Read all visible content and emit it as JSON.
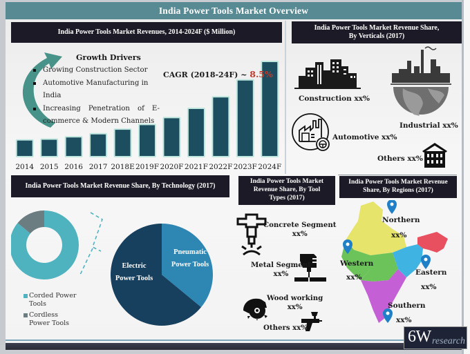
{
  "header": {
    "title": "India Power Tools Market Overview"
  },
  "revenue": {
    "title": "India  Power Tools Market Revenues, 2014-2024F ($ Million)",
    "growth_drivers": {
      "heading": "Growth Drivers",
      "items": [
        "Growing Construction Sector",
        "Automotive Manufacturing in India",
        "Increasing Penetration of E-",
        "commerce & Modern Channels"
      ]
    },
    "cagr_label": "CAGR (2018-24F) ~ ",
    "cagr_value": "8.5%",
    "colors": {
      "bar": "#1d4e5f",
      "glow": "#bfe6de",
      "arrow": "#3d8d83"
    }
  },
  "verticals": {
    "title_line1": "India Power Tools Market Revenue Share,",
    "title_line2": "By Verticals (2017)",
    "items": [
      {
        "icon": "city-buildings-icon",
        "label": "Construction xx%"
      },
      {
        "icon": "industrial-globe-icon",
        "label": "Industrial xx%"
      },
      {
        "icon": "automotive-factory-icon",
        "label": "Automotive xx%"
      },
      {
        "icon": "house-icon",
        "label": "Others xx%"
      }
    ]
  },
  "technology": {
    "title": "India Power Tools Market Revenue Share, By  Technology (2017)",
    "legend": [
      {
        "label_line1": "Corded Power",
        "label_line2": "Tools",
        "color": "#4fb3bf"
      },
      {
        "label_line1": "Cordless",
        "label_line2": "Power Tools",
        "color": "#6b7d80"
      }
    ],
    "pie_labels": {
      "electric_line1": "Electric",
      "electric_line2": "Power Tools",
      "pneumatic_line1": "Pneumatic",
      "pneumatic_line2": "Power Tools"
    }
  },
  "tool_types": {
    "title_line1": "India Power Tools Market",
    "title_line2": "Revenue Share, By Tool",
    "title_line3": "Types (2017)",
    "items": [
      {
        "icon": "jackhammer-icon",
        "line1": "Concrete Segment",
        "line2": "xx%"
      },
      {
        "icon": "drill-press-icon",
        "line1": "Metal Segment",
        "line2": "xx%"
      },
      {
        "icon": "circular-saw-icon",
        "line1": "Wood working",
        "line2": "xx%"
      },
      {
        "icon": "spray-gun-icon",
        "line1": "Others xx%",
        "line2": ""
      }
    ]
  },
  "regions": {
    "title_line1": "India Power Tools Market Revenue",
    "title_line2": "Share, By Regions (2017)",
    "items": [
      {
        "name": "Northern",
        "value": "xx%"
      },
      {
        "name": "Western",
        "value": "xx%"
      },
      {
        "name": "Eastern",
        "value": "xx%"
      },
      {
        "name": "Southern",
        "value": "xx%"
      }
    ],
    "colors": {
      "north": "#e6e46a",
      "west": "#6cc35a",
      "east": "#3fb4e3",
      "northeast": "#e8505f",
      "south": "#c45fd6",
      "pin": "#1f7fc7"
    }
  },
  "logo": {
    "big": "6W",
    "small": "research"
  },
  "chart_data": [
    {
      "type": "bar",
      "title": "India  Power Tools Market Revenues, 2014-2024F ($ Million)",
      "categories": [
        "2014",
        "2015",
        "2016",
        "2017",
        "2018E",
        "2019F",
        "2020F",
        "2021F",
        "2022F",
        "2023F",
        "2024F"
      ],
      "values": [
        20,
        21,
        24,
        28,
        34,
        40,
        49,
        61,
        76,
        98,
        122
      ],
      "xlabel": "",
      "ylabel": "",
      "annotation": "CAGR (2018-24F) ~ 8.5%",
      "note": "Values are relative bar heights; no y-axis ticks shown"
    },
    {
      "type": "pie",
      "title": "India Power Tools Market Revenue Share, By  Technology (2017)",
      "subtype": "donut",
      "labels": [
        "Corded Power Tools",
        "Cordless Power Tools"
      ],
      "values": [
        86,
        14
      ],
      "colors": [
        "#4fb3bf",
        "#6b7d80"
      ]
    },
    {
      "type": "pie",
      "title": "Corded Power Tools breakdown",
      "labels": [
        "Electric Power Tools",
        "Pneumatic Power Tools"
      ],
      "values": [
        64,
        36
      ],
      "colors": [
        "#17405e",
        "#2e86b3"
      ]
    }
  ]
}
